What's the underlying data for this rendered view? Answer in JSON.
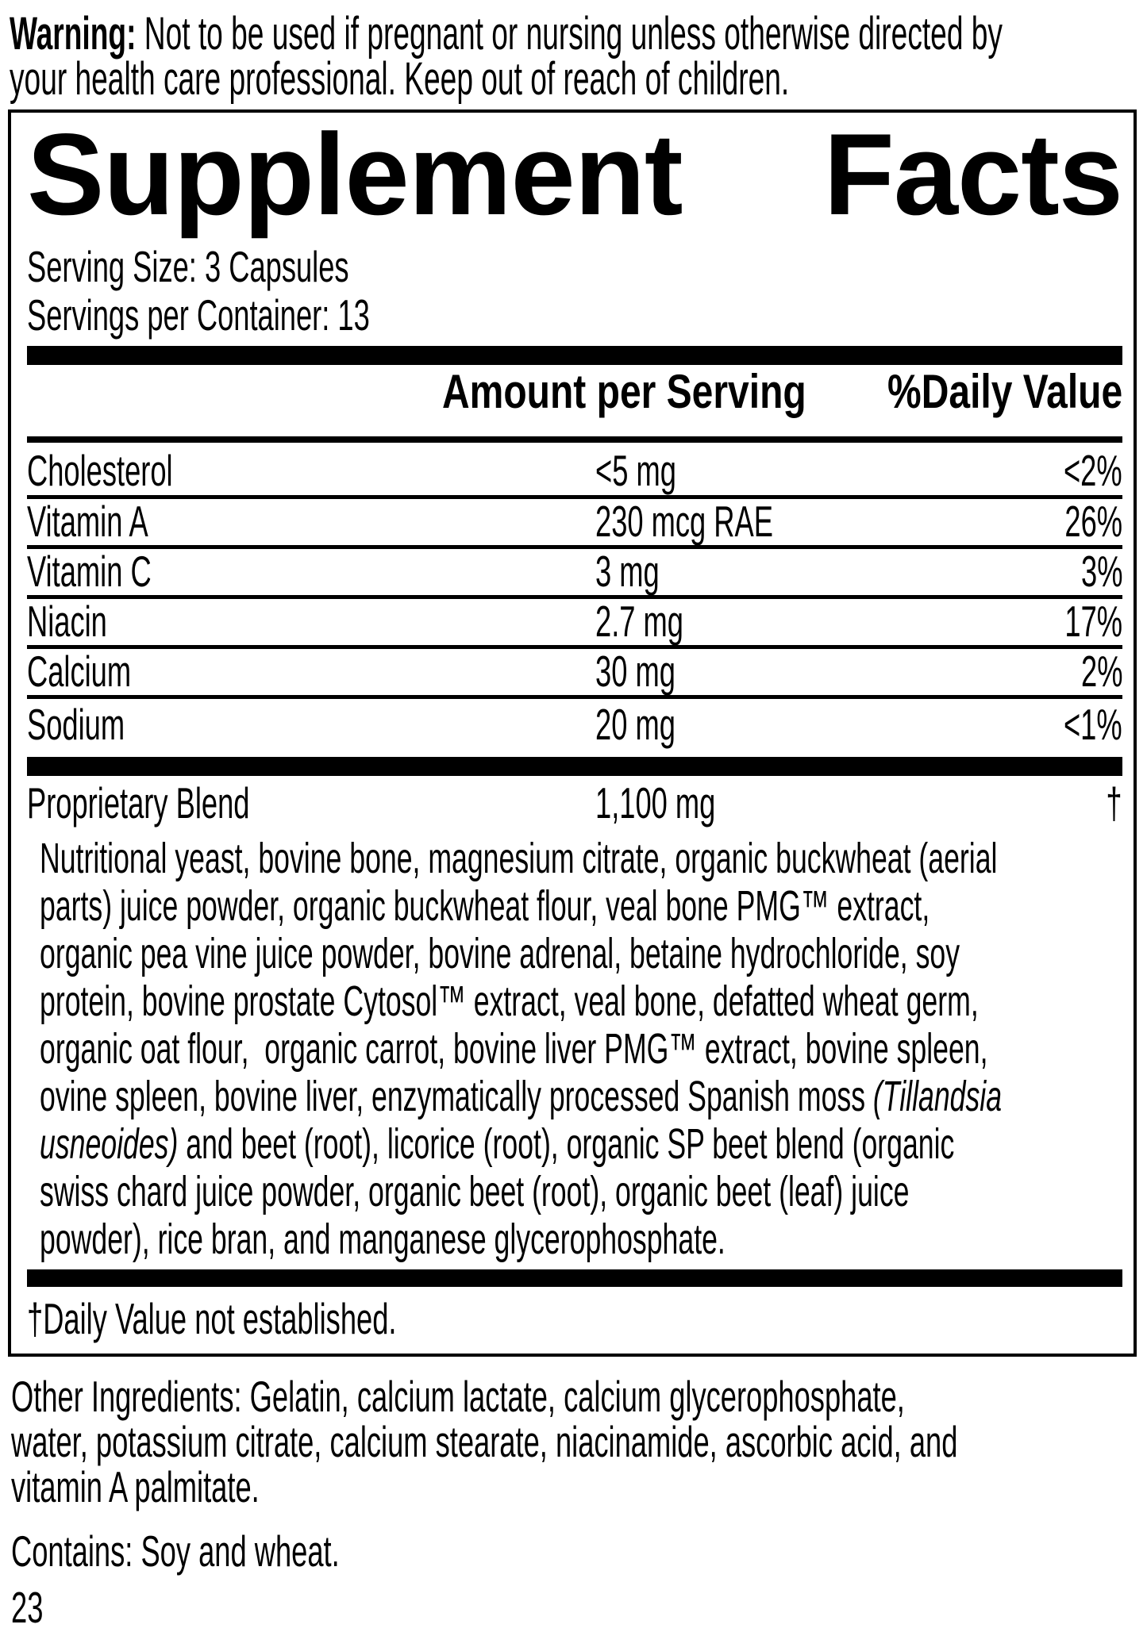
{
  "warning": {
    "lines": [
      [
        {
          "t": "Warning:",
          "b": true
        },
        {
          "t": " Not to be used if pregnant or nursing unless otherwise directed by"
        }
      ],
      [
        {
          "t": "your health care professional. Keep out of reach of children."
        }
      ]
    ]
  },
  "panel": {
    "title_words": [
      "Supplement",
      "Facts"
    ],
    "serving_size": "Serving Size: 3 Capsules",
    "servings_per_container": "Servings per Container: 13",
    "columns": {
      "amount": "Amount per Serving",
      "dv": "%Daily Value"
    },
    "nutrients": [
      {
        "name": "Cholesterol",
        "amount": "<5 mg",
        "dv": "<2%"
      },
      {
        "name": "Vitamin A",
        "amount": "230 mcg RAE",
        "dv": "26%"
      },
      {
        "name": "Vitamin C",
        "amount": "3 mg",
        "dv": "3%"
      },
      {
        "name": "Niacin",
        "amount": "2.7 mg",
        "dv": "17%"
      },
      {
        "name": "Calcium",
        "amount": "30 mg",
        "dv": "2%"
      },
      {
        "name": "Sodium",
        "amount": "20 mg",
        "dv": "<1%"
      }
    ],
    "proprietary": {
      "name": "Proprietary Blend",
      "amount": "1,100 mg",
      "dv": "†"
    },
    "blend_lines": [
      [
        {
          "t": "Nutritional yeast, bovine bone, magnesium citrate, organic buckwheat (aerial"
        }
      ],
      [
        {
          "t": "parts) juice powder, organic buckwheat flour, veal bone PMG™ extract,"
        }
      ],
      [
        {
          "t": "organic pea vine juice powder, bovine adrenal, betaine hydrochloride, soy"
        }
      ],
      [
        {
          "t": "protein, bovine prostate Cytosol™ extract, veal bone, defatted wheat germ,"
        }
      ],
      [
        {
          "t": "organic oat flour,  organic carrot, bovine liver PMG™ extract, bovine spleen,"
        }
      ],
      [
        {
          "t": "ovine spleen, bovine liver, enzymatically processed Spanish moss "
        },
        {
          "t": "(Tillandsia",
          "i": true
        }
      ],
      [
        {
          "t": "usneoides)",
          "i": true
        },
        {
          "t": " and beet (root), licorice (root), organic SP beet blend (organic"
        }
      ],
      [
        {
          "t": "swiss chard juice powder, organic beet (root), organic beet (leaf) juice"
        }
      ],
      [
        {
          "t": "powder), rice bran, and manganese glycerophosphate."
        }
      ]
    ],
    "footnote": "†Daily Value not established."
  },
  "other_ingredients": {
    "lines": [
      [
        {
          "t": "Other Ingredients: Gelatin, calcium lactate, calcium glycerophosphate,"
        }
      ],
      [
        {
          "t": "water, potassium citrate, calcium stearate, niacinamide, ascorbic acid, and"
        }
      ],
      [
        {
          "t": "vitamin A palmitate."
        }
      ]
    ]
  },
  "contains": "Contains: Soy and wheat.",
  "page_number": "23"
}
